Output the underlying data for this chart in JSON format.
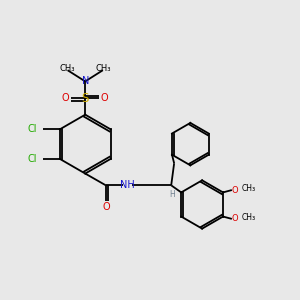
{
  "bg_color": "#e8e8e8",
  "fig_size": [
    3.0,
    3.0
  ],
  "dpi": 100,
  "bond_color": "#000000",
  "bond_lw": 1.3,
  "colors": {
    "C": "#000000",
    "N": "#1414cc",
    "O": "#dd0000",
    "S": "#ccaa00",
    "Cl": "#22aa00",
    "H": "#708090"
  },
  "font_size": 7.0,
  "small_font": 6.0,
  "xlim": [
    0,
    10
  ],
  "ylim": [
    0,
    10
  ]
}
